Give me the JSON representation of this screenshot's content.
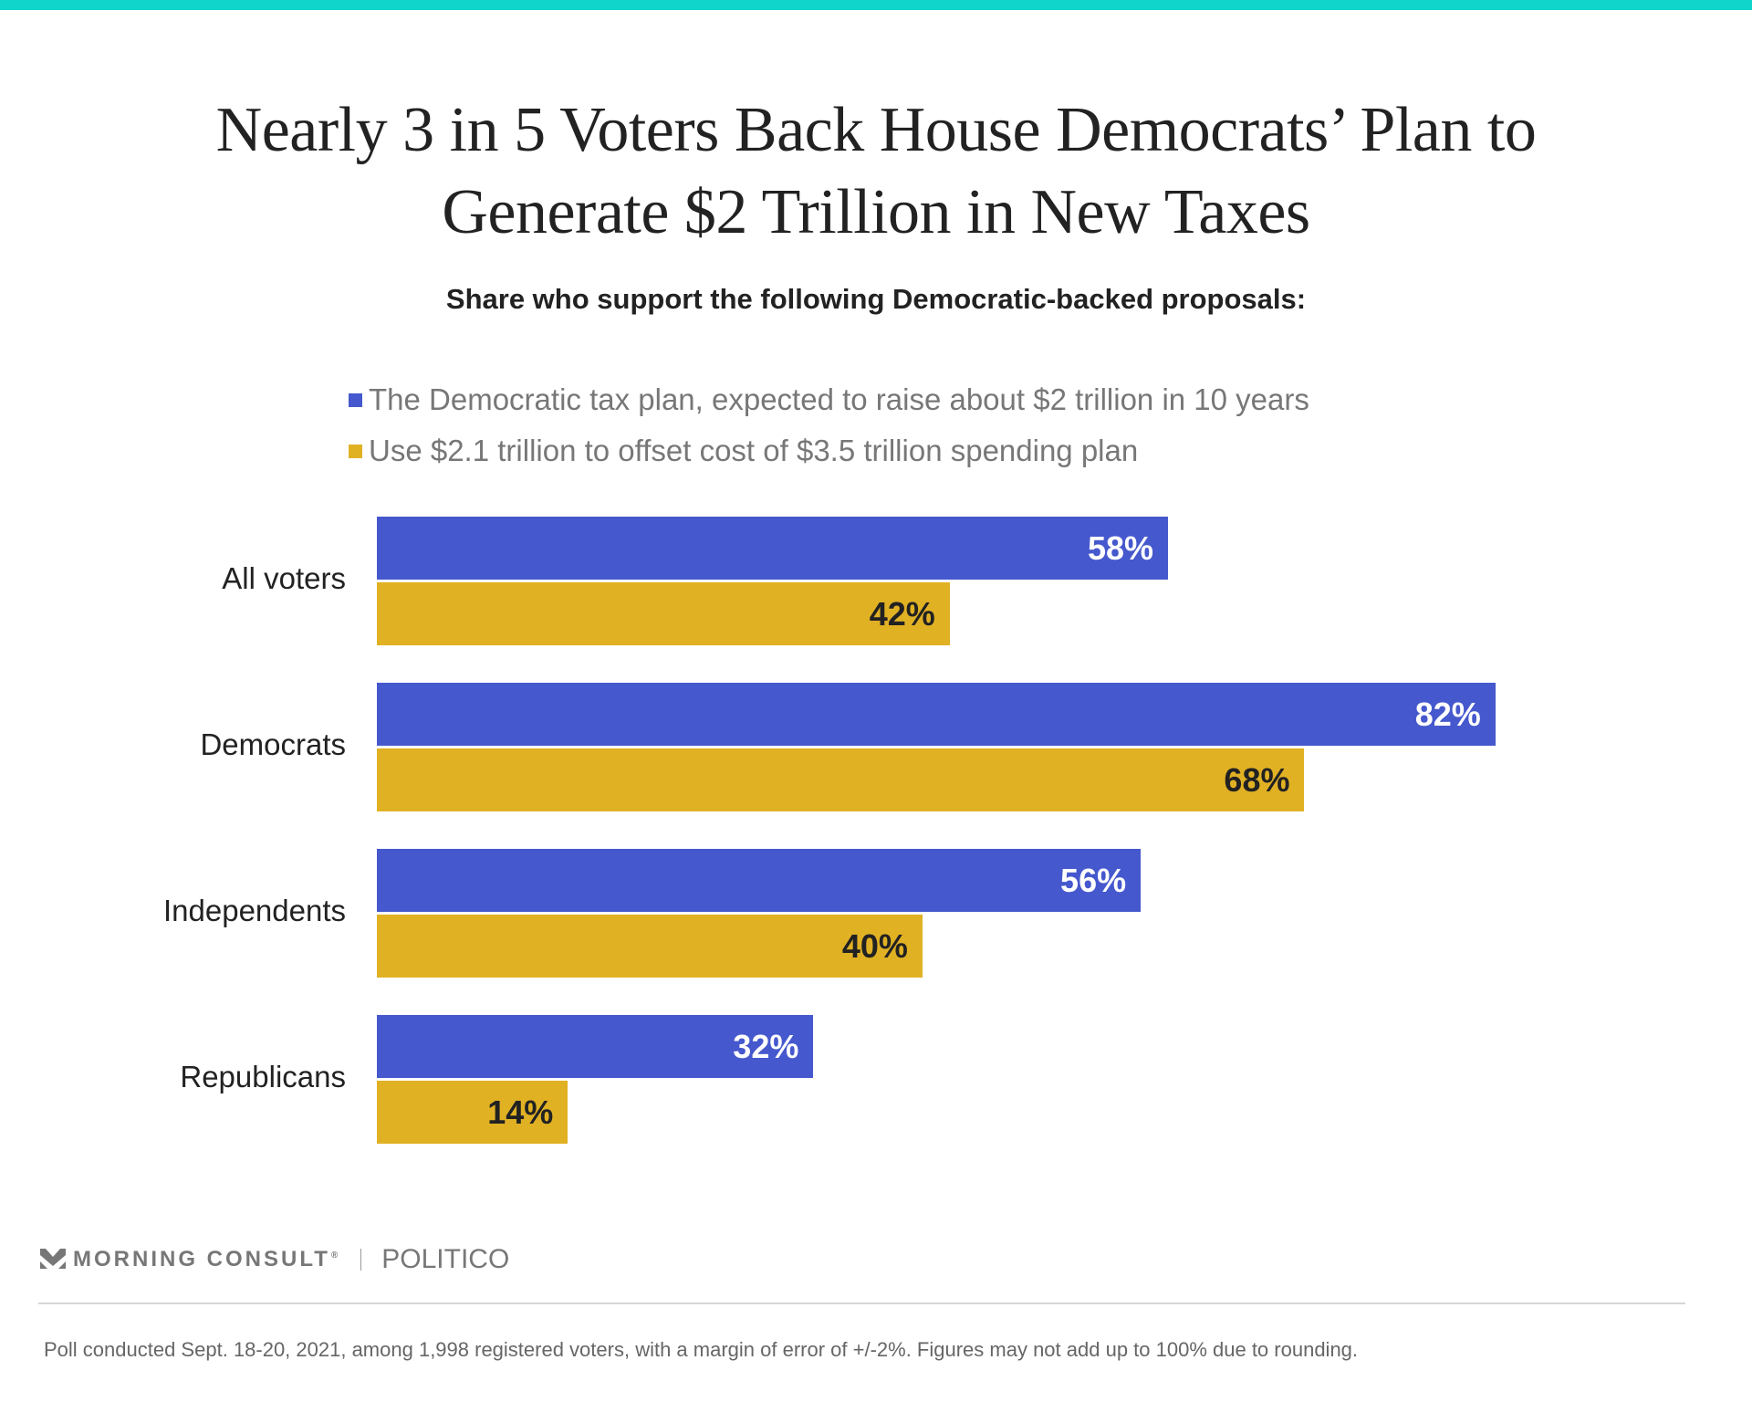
{
  "header": {
    "accent_color": "#0fd5cb",
    "title_line1": "Nearly 3 in 5 Voters Back House Democrats’ Plan to",
    "title_line2": "Generate $2 Trillion in New Taxes",
    "subtitle": "Share who support the following Democratic-backed proposals:"
  },
  "chart_data": {
    "type": "bar",
    "orientation": "horizontal",
    "title": "Nearly 3 in 5 Voters Back House Democrats’ Plan to Generate $2 Trillion in New Taxes",
    "subtitle": "Share who support the following Democratic-backed proposals:",
    "xlabel": "",
    "ylabel": "",
    "xlim": [
      0,
      100
    ],
    "grid": false,
    "legend_position": "top",
    "categories": [
      "All voters",
      "Democrats",
      "Independents",
      "Republicans"
    ],
    "series": [
      {
        "name": "The Democratic tax plan, expected to raise about $2 trillion in 10 years",
        "color": "#4558cd",
        "label_color": "#ffffff",
        "values": [
          58,
          82,
          56,
          32
        ],
        "labels": [
          "58%",
          "82%",
          "56%",
          "32%"
        ]
      },
      {
        "name": "Use $2.1 trillion to offset cost of $3.5 trillion spending plan",
        "color": "#e1b124",
        "label_color": "#222222",
        "values": [
          42,
          68,
          40,
          14
        ],
        "labels": [
          "42%",
          "68%",
          "40%",
          "14%"
        ]
      }
    ]
  },
  "footer": {
    "brand1": "MORNING CONSULT",
    "registered_mark": "®",
    "brand2": "POLITICO",
    "note": "Poll conducted Sept. 18-20, 2021, among 1,998 registered voters, with a margin of error of +/-2%. Figures may not add up to 100% due to rounding."
  }
}
